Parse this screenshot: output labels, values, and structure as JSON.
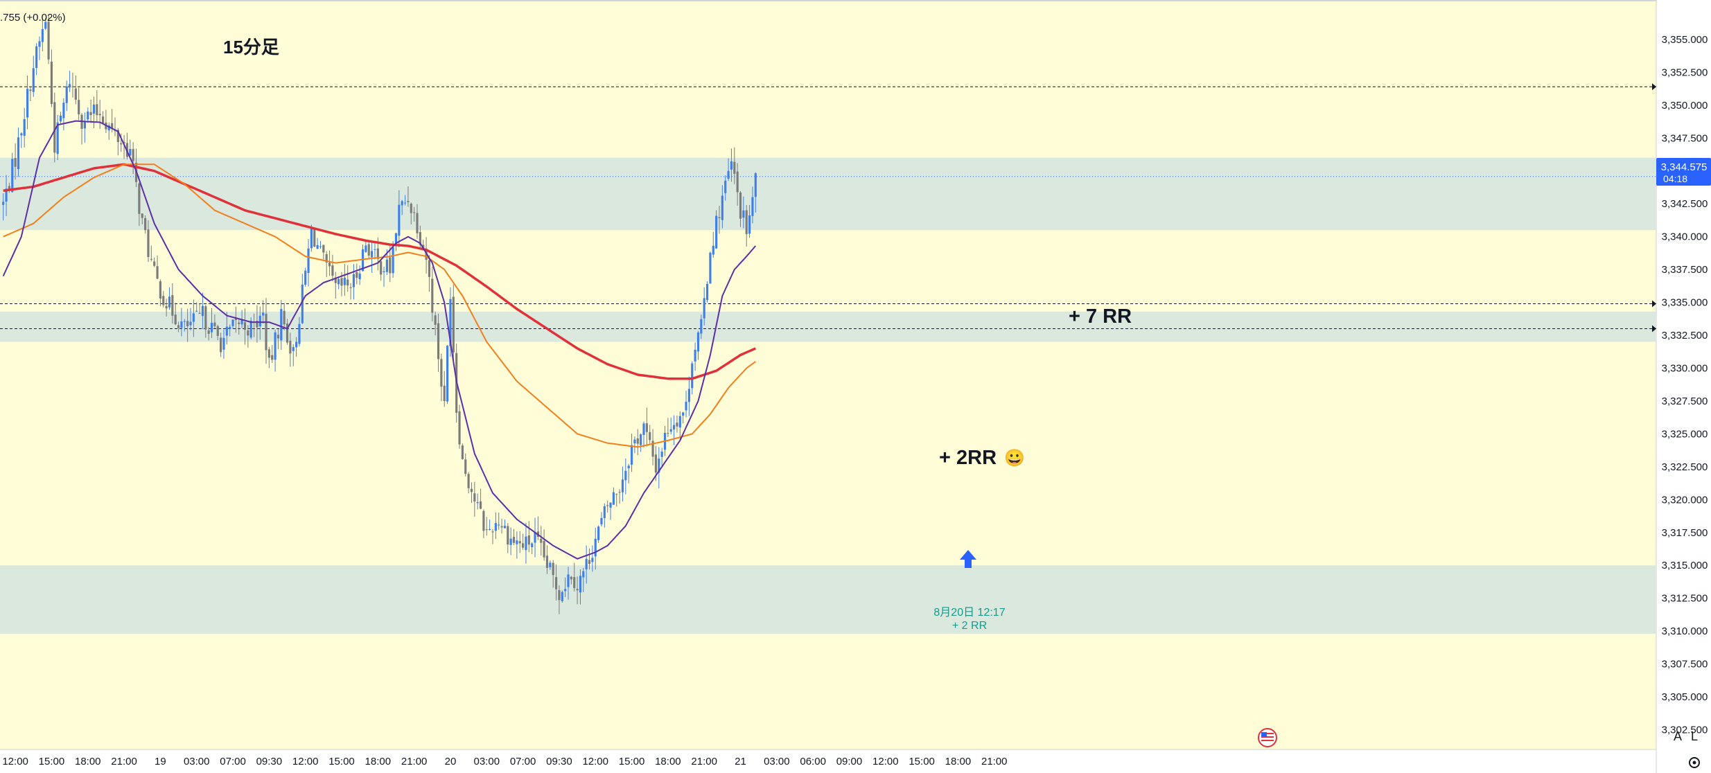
{
  "header": {
    "change_text": ".755 (+0.02%)"
  },
  "annotations": {
    "timeframe": "15分足",
    "rr_big": "+ 7 RR",
    "rr_mid": "+ 2RR",
    "rr_mid_emoji": "😀",
    "entry_date": "8月20日  12:17",
    "entry_rr": "+ 2 RR"
  },
  "price_badge": {
    "price": "3,344.575",
    "countdown": "04:18"
  },
  "scale_buttons": {
    "auto": "A",
    "log": "L"
  },
  "colors": {
    "background": "#fefdd8",
    "zone": "#dbe8dd",
    "bull": "#3f7fe8",
    "bear": "#7b7b7b",
    "ma_fast": "#5b2ea6",
    "ma_mid": "#f07f1c",
    "ma_slow": "#e0313a",
    "badge": "#2962ff",
    "annotation_green": "#159a8c"
  },
  "icons": {
    "entry": "entry-arrow-icon",
    "flag": "us-flag-icon",
    "settings": "settings-icon"
  },
  "chart_data": {
    "type": "candlestick",
    "y_axis": {
      "range": [
        3301.0,
        3358.0
      ],
      "ticks": [
        3302.5,
        3305.0,
        3307.5,
        3310.0,
        3312.5,
        3315.0,
        3317.5,
        3320.0,
        3322.5,
        3325.0,
        3327.5,
        3330.0,
        3332.5,
        3335.0,
        3337.5,
        3340.0,
        3342.5,
        3345.0,
        3347.5,
        3350.0,
        3352.5,
        3355.0
      ],
      "tick_labels": [
        "3,302.500",
        "3,305.000",
        "3,307.500",
        "3,310.000",
        "3,312.500",
        "3,315.000",
        "3,317.500",
        "3,320.000",
        "3,322.500",
        "3,325.000",
        "3,327.500",
        "3,330.000",
        "3,332.500",
        "3,335.000",
        "3,337.500",
        "3,340.000",
        "3,342.500",
        "3,345.000",
        "3,347.500",
        "3,350.000",
        "3,352.500",
        "3,355.000"
      ]
    },
    "x_axis": {
      "bar_minutes": 15,
      "ticks": [
        {
          "bar": 4,
          "label": "12:00"
        },
        {
          "bar": 16,
          "label": "15:00"
        },
        {
          "bar": 28,
          "label": "18:00"
        },
        {
          "bar": 40,
          "label": "21:00"
        },
        {
          "bar": 52,
          "label": "19"
        },
        {
          "bar": 64,
          "label": "03:00"
        },
        {
          "bar": 76,
          "label": "07:00"
        },
        {
          "bar": 88,
          "label": "09:30"
        },
        {
          "bar": 100,
          "label": "12:00"
        },
        {
          "bar": 112,
          "label": "15:00"
        },
        {
          "bar": 124,
          "label": "18:00"
        },
        {
          "bar": 136,
          "label": "21:00"
        },
        {
          "bar": 148,
          "label": "20"
        },
        {
          "bar": 160,
          "label": "03:00"
        },
        {
          "bar": 172,
          "label": "07:00"
        },
        {
          "bar": 184,
          "label": "09:30"
        },
        {
          "bar": 196,
          "label": "12:00"
        },
        {
          "bar": 208,
          "label": "15:00"
        },
        {
          "bar": 220,
          "label": "18:00"
        },
        {
          "bar": 232,
          "label": "21:00"
        },
        {
          "bar": 244,
          "label": "21"
        },
        {
          "bar": 256,
          "label": "03:00"
        },
        {
          "bar": 268,
          "label": "06:00"
        },
        {
          "bar": 280,
          "label": "09:00"
        },
        {
          "bar": 292,
          "label": "12:00"
        },
        {
          "bar": 304,
          "label": "15:00"
        },
        {
          "bar": 316,
          "label": "18:00"
        },
        {
          "bar": 328,
          "label": "21:00"
        }
      ]
    },
    "zones": [
      {
        "low": 3340.5,
        "high": 3346.0
      },
      {
        "low": 3332.0,
        "high": 3334.3
      },
      {
        "low": 3309.8,
        "high": 3315.0
      }
    ],
    "levels": [
      3351.4,
      3334.9,
      3333.0
    ],
    "current_price": 3344.575,
    "close_waypoints": [
      [
        0,
        3342.5
      ],
      [
        4,
        3346.0
      ],
      [
        10,
        3353.0
      ],
      [
        14,
        3356.5
      ],
      [
        17,
        3347.0
      ],
      [
        22,
        3352.0
      ],
      [
        26,
        3349.0
      ],
      [
        32,
        3349.5
      ],
      [
        36,
        3348.0
      ],
      [
        42,
        3346.5
      ],
      [
        46,
        3341.0
      ],
      [
        50,
        3337.0
      ],
      [
        54,
        3335.0
      ],
      [
        60,
        3333.0
      ],
      [
        66,
        3334.0
      ],
      [
        72,
        3332.0
      ],
      [
        74,
        3332.5
      ],
      [
        78,
        3333.5
      ],
      [
        82,
        3333.0
      ],
      [
        86,
        3334.0
      ],
      [
        88,
        3330.0
      ],
      [
        92,
        3334.0
      ],
      [
        96,
        3331.0
      ],
      [
        98,
        3334.0
      ],
      [
        102,
        3340.5
      ],
      [
        106,
        3338.0
      ],
      [
        110,
        3336.0
      ],
      [
        116,
        3336.5
      ],
      [
        120,
        3339.5
      ],
      [
        124,
        3338.0
      ],
      [
        128,
        3337.5
      ],
      [
        131,
        3342.0
      ],
      [
        134,
        3343.0
      ],
      [
        137,
        3341.0
      ],
      [
        140,
        3338.5
      ],
      [
        143,
        3333.0
      ],
      [
        146,
        3327.0
      ],
      [
        148,
        3336.0
      ],
      [
        150,
        3327.0
      ],
      [
        152,
        3323.0
      ],
      [
        156,
        3320.0
      ],
      [
        160,
        3317.5
      ],
      [
        164,
        3318.5
      ],
      [
        168,
        3317.0
      ],
      [
        172,
        3316.5
      ],
      [
        176,
        3317.0
      ],
      [
        180,
        3315.0
      ],
      [
        184,
        3313.0
      ],
      [
        188,
        3314.5
      ],
      [
        190,
        3313.5
      ],
      [
        193,
        3315.0
      ],
      [
        196,
        3317.0
      ],
      [
        200,
        3319.5
      ],
      [
        204,
        3321.0
      ],
      [
        208,
        3324.0
      ],
      [
        212,
        3325.5
      ],
      [
        216,
        3322.5
      ],
      [
        220,
        3325.5
      ],
      [
        224,
        3326.5
      ],
      [
        226,
        3327.0
      ],
      [
        228,
        3331.0
      ],
      [
        231,
        3333.0
      ],
      [
        234,
        3339.0
      ],
      [
        238,
        3343.0
      ],
      [
        241,
        3345.5
      ],
      [
        244,
        3342.0
      ],
      [
        246,
        3340.5
      ],
      [
        248,
        3342.5
      ],
      [
        249,
        3344.6
      ]
    ],
    "ma_fast_waypoints": [
      [
        0,
        3337.0
      ],
      [
        6,
        3340.0
      ],
      [
        12,
        3346.0
      ],
      [
        18,
        3348.5
      ],
      [
        24,
        3348.8
      ],
      [
        32,
        3348.7
      ],
      [
        38,
        3348.0
      ],
      [
        44,
        3345.0
      ],
      [
        50,
        3341.0
      ],
      [
        58,
        3337.5
      ],
      [
        66,
        3335.5
      ],
      [
        74,
        3334.0
      ],
      [
        82,
        3333.5
      ],
      [
        88,
        3333.5
      ],
      [
        94,
        3333.0
      ],
      [
        100,
        3335.5
      ],
      [
        106,
        3336.5
      ],
      [
        112,
        3337.0
      ],
      [
        118,
        3337.5
      ],
      [
        124,
        3338.0
      ],
      [
        130,
        3339.5
      ],
      [
        134,
        3340.0
      ],
      [
        138,
        3339.5
      ],
      [
        142,
        3338.0
      ],
      [
        146,
        3335.0
      ],
      [
        150,
        3329.0
      ],
      [
        156,
        3323.5
      ],
      [
        162,
        3320.5
      ],
      [
        170,
        3318.5
      ],
      [
        176,
        3317.5
      ],
      [
        182,
        3316.5
      ],
      [
        190,
        3315.5
      ],
      [
        196,
        3316.0
      ],
      [
        200,
        3316.5
      ],
      [
        206,
        3318.0
      ],
      [
        212,
        3320.5
      ],
      [
        218,
        3322.5
      ],
      [
        224,
        3324.5
      ],
      [
        230,
        3327.5
      ],
      [
        234,
        3331.0
      ],
      [
        238,
        3335.5
      ],
      [
        242,
        3337.5
      ],
      [
        246,
        3338.5
      ],
      [
        249,
        3339.3
      ]
    ],
    "ma_mid_waypoints": [
      [
        0,
        3340.0
      ],
      [
        10,
        3341.0
      ],
      [
        20,
        3343.0
      ],
      [
        30,
        3344.5
      ],
      [
        40,
        3345.5
      ],
      [
        50,
        3345.5
      ],
      [
        60,
        3344.0
      ],
      [
        70,
        3342.0
      ],
      [
        80,
        3341.0
      ],
      [
        90,
        3340.0
      ],
      [
        100,
        3338.5
      ],
      [
        110,
        3338.0
      ],
      [
        120,
        3338.3
      ],
      [
        128,
        3338.5
      ],
      [
        134,
        3338.8
      ],
      [
        140,
        3338.5
      ],
      [
        146,
        3337.5
      ],
      [
        152,
        3335.5
      ],
      [
        160,
        3332.0
      ],
      [
        170,
        3329.0
      ],
      [
        180,
        3327.0
      ],
      [
        190,
        3325.0
      ],
      [
        200,
        3324.3
      ],
      [
        210,
        3324.0
      ],
      [
        220,
        3324.5
      ],
      [
        228,
        3325.0
      ],
      [
        234,
        3326.5
      ],
      [
        240,
        3328.5
      ],
      [
        246,
        3330.0
      ],
      [
        249,
        3330.5
      ]
    ],
    "ma_slow_waypoints": [
      [
        0,
        3343.5
      ],
      [
        10,
        3343.8
      ],
      [
        20,
        3344.5
      ],
      [
        30,
        3345.2
      ],
      [
        40,
        3345.5
      ],
      [
        50,
        3345.0
      ],
      [
        60,
        3344.0
      ],
      [
        70,
        3343.0
      ],
      [
        80,
        3342.0
      ],
      [
        90,
        3341.4
      ],
      [
        100,
        3340.8
      ],
      [
        110,
        3340.2
      ],
      [
        120,
        3339.7
      ],
      [
        128,
        3339.4
      ],
      [
        134,
        3339.3
      ],
      [
        140,
        3339.0
      ],
      [
        150,
        3337.8
      ],
      [
        160,
        3336.2
      ],
      [
        170,
        3334.5
      ],
      [
        180,
        3333.0
      ],
      [
        190,
        3331.5
      ],
      [
        200,
        3330.3
      ],
      [
        210,
        3329.5
      ],
      [
        220,
        3329.2
      ],
      [
        228,
        3329.2
      ],
      [
        236,
        3329.8
      ],
      [
        244,
        3331.0
      ],
      [
        249,
        3331.5
      ]
    ]
  }
}
